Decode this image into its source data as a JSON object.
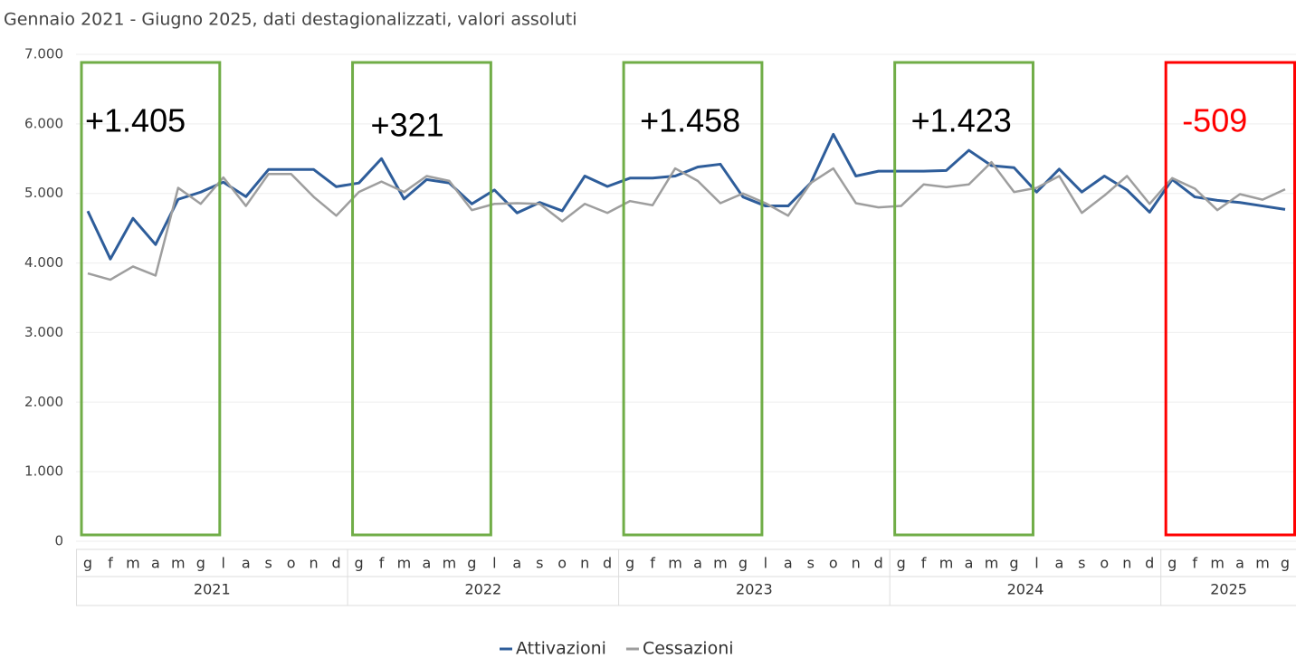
{
  "chart_data": {
    "type": "line",
    "title": "Gennaio 2021 - Giugno 2025, dati destagionalizzati, valori assoluti",
    "categories": [
      "g",
      "f",
      "m",
      "a",
      "m",
      "g",
      "l",
      "a",
      "s",
      "o",
      "n",
      "d",
      "g",
      "f",
      "m",
      "a",
      "m",
      "g",
      "l",
      "a",
      "s",
      "o",
      "n",
      "d",
      "g",
      "f",
      "m",
      "a",
      "m",
      "g",
      "l",
      "a",
      "s",
      "o",
      "n",
      "d",
      "g",
      "f",
      "m",
      "a",
      "m",
      "g",
      "l",
      "a",
      "s",
      "o",
      "n",
      "d",
      "g",
      "f",
      "m",
      "a",
      "m",
      "g"
    ],
    "groups": [
      "2021",
      "2022",
      "2023",
      "2024",
      "2025"
    ],
    "series": [
      {
        "name": "Attivazioni",
        "color": "#2e5d9a",
        "values": [
          4746,
          4057,
          4642,
          4265,
          4915,
          5019,
          5162,
          4954,
          5344,
          5344,
          5344,
          5097,
          5150,
          5500,
          4920,
          5200,
          5150,
          4850,
          5050,
          4720,
          4870,
          4750,
          5250,
          5100,
          5220,
          5220,
          5250,
          5380,
          5420,
          4950,
          4820,
          4820,
          5150,
          5850,
          5250,
          5320,
          5320,
          5320,
          5330,
          5620,
          5400,
          5370,
          5020,
          5350,
          5020,
          5250,
          5050,
          4730,
          5200,
          4950,
          4900,
          4870,
          4820,
          4770
        ]
      },
      {
        "name": "Cessazioni",
        "color": "#9e9e9e",
        "values": [
          3850,
          3760,
          3950,
          3820,
          5080,
          4850,
          5230,
          4820,
          5280,
          5280,
          4950,
          4680,
          5020,
          5170,
          5020,
          5250,
          5180,
          4760,
          4850,
          4860,
          4850,
          4600,
          4850,
          4720,
          4890,
          4830,
          5360,
          5180,
          4860,
          5000,
          4860,
          4680,
          5150,
          5360,
          4860,
          4800,
          4820,
          5130,
          5090,
          5130,
          5450,
          5020,
          5080,
          5250,
          4720,
          4970,
          5250,
          4850,
          5220,
          5070,
          4760,
          4990,
          4910,
          5060
        ]
      }
    ],
    "ylim": [
      0,
      7000
    ],
    "yticks": [
      0,
      {
        "value": 1000,
        "label": "1.000"
      },
      {
        "value": 2000,
        "label": "2.000"
      },
      {
        "value": 3000,
        "label": "3.000"
      },
      {
        "value": 4000,
        "label": "4.000"
      },
      {
        "value": 5000,
        "label": "5.000"
      },
      {
        "value": 6000,
        "label": "6.000"
      },
      {
        "value": 7000,
        "label": "7.000"
      }
    ],
    "grid": true,
    "annotations": [
      {
        "text": "+1.405",
        "color": "#70ad47",
        "text_color": "#000000"
      },
      {
        "text": "+321",
        "color": "#70ad47",
        "text_color": "#000000"
      },
      {
        "text": "+1.458",
        "color": "#70ad47",
        "text_color": "#000000"
      },
      {
        "text": "+1.423",
        "color": "#70ad47",
        "text_color": "#000000"
      },
      {
        "text": "-509",
        "color": "#ff0000",
        "text_color": "#ff0000"
      }
    ],
    "legend": "bottom"
  }
}
